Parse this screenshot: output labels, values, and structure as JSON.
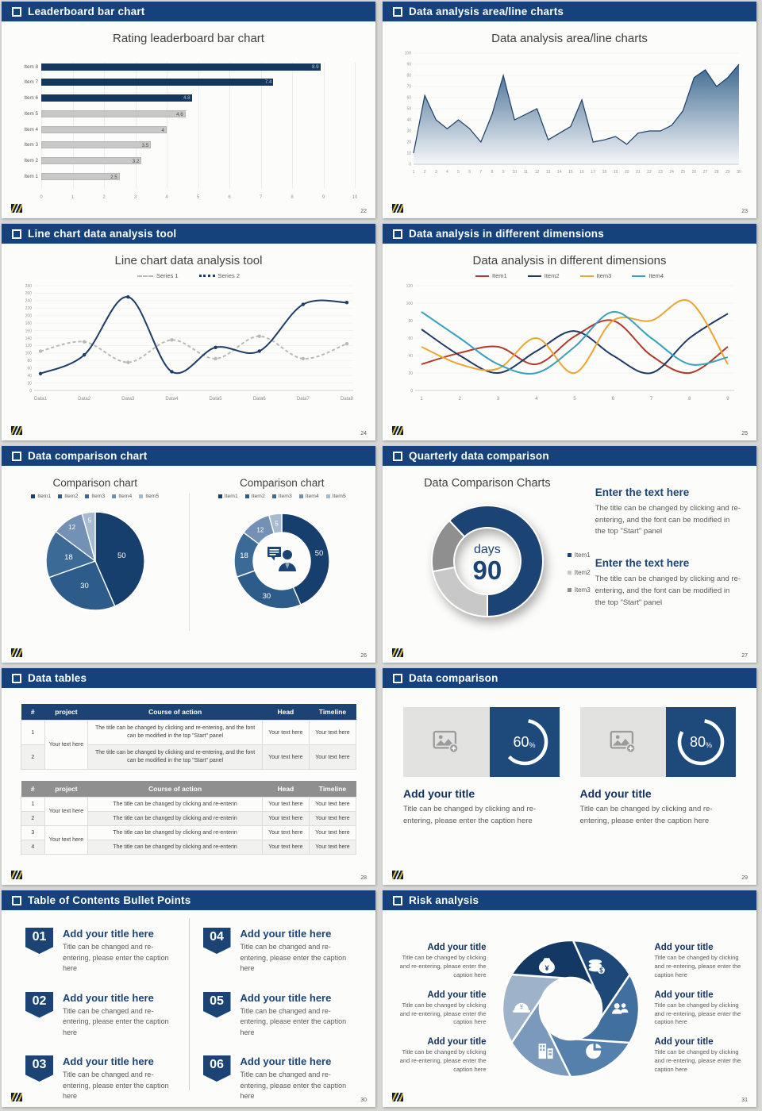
{
  "ui": {
    "page_bg": "#d7d7d3",
    "slide_bg": "#fcfcfa",
    "header_bg": "#15427a",
    "accent_navy": "#1b4475",
    "slides": {
      "leaderboard": {
        "header": "Leaderboard bar chart",
        "page": "22",
        "title": "Rating leaderboard bar chart"
      },
      "area": {
        "header": "Data analysis area/line charts",
        "page": "23",
        "title": "Data analysis area/line charts"
      },
      "line": {
        "header": "Line chart data analysis tool",
        "page": "24",
        "title": "Line chart data analysis tool",
        "legend": [
          "Series 1",
          "Series 2"
        ]
      },
      "dims": {
        "header": "Data analysis in different dimensions",
        "page": "25",
        "title": "Data analysis in different dimensions"
      },
      "pies": {
        "header": "Data comparison chart",
        "page": "26",
        "title_left": "Comparison chart",
        "title_right": "Comparison chart"
      },
      "quarterly": {
        "header": "Quarterly data comparison",
        "page": "27",
        "title": "Data Comparison Charts",
        "center_label": "days",
        "center_value": "90",
        "blocks": [
          {
            "heading": "Enter the text here",
            "body": "The title can be changed by clicking and re-entering, and the font can be modified in the top \"Start\" panel"
          },
          {
            "heading": "Enter the text here",
            "body": "The title can be changed by clicking and re-entering, and the font can be modified in the top \"Start\" panel"
          }
        ]
      },
      "tables": {
        "header": "Data tables",
        "page": "28",
        "columns": [
          "#",
          "project",
          "Course of action",
          "Head",
          "Timeline"
        ],
        "project": "Your text here",
        "cell": "Your text here",
        "long_action": "The title can be changed by clicking and re-entering, and the font can be modified in the top \"Start\" panel",
        "short_action": "The title can be changed by clicking and re-enterin",
        "t1_rows": [
          "1",
          "2"
        ],
        "t2_rows": [
          "1",
          "2",
          "3",
          "4"
        ]
      },
      "compare": {
        "header": "Data comparison",
        "page": "29",
        "cards": [
          {
            "pct": "60",
            "unit": "%",
            "title": "Add your title",
            "caption": "Title can be changed by clicking and re-entering, please enter the caption here"
          },
          {
            "pct": "80",
            "unit": "%",
            "title": "Add your title",
            "caption": "Title can be changed by clicking and re-entering, please enter the caption here"
          }
        ]
      },
      "toc": {
        "header": "Table of Contents Bullet Points",
        "page": "30",
        "items": [
          {
            "num": "01",
            "title": "Add your title here",
            "caption": "Title can be changed and re-entering, please enter the caption here"
          },
          {
            "num": "02",
            "title": "Add your title here",
            "caption": "Title can be changed and re-entering, please enter the caption here"
          },
          {
            "num": "03",
            "title": "Add your title here",
            "caption": "Title can be changed and re-entering, please enter the caption here"
          },
          {
            "num": "04",
            "title": "Add your title here",
            "caption": "Title can be changed and re-entering, please enter the caption here"
          },
          {
            "num": "05",
            "title": "Add your title here",
            "caption": "Title can be changed and re-entering, please enter the caption here"
          },
          {
            "num": "06",
            "title": "Add your title here",
            "caption": "Title can be changed and re-entering, please enter the caption here"
          }
        ]
      },
      "risk": {
        "header": "Risk analysis",
        "page": "31",
        "blocks_left": [
          {
            "heading": "Add your title",
            "caption": "Title can be changed by clicking and re-entering, please enter the caption here"
          },
          {
            "heading": "Add your title",
            "caption": "Title can be changed by clicking and re-entering, please enter the caption here"
          },
          {
            "heading": "Add your title",
            "caption": "Title can be changed by clicking and re-entering, please enter the caption here"
          }
        ],
        "blocks_right": [
          {
            "heading": "Add your title",
            "caption": "Title can be changed by clicking and re-entering, please enter the caption here"
          },
          {
            "heading": "Add your title",
            "caption": "Title can be changed by clicking and re-entering, please enter the caption here"
          },
          {
            "heading": "Add your title",
            "caption": "Title can be changed by clicking and re-entering, please enter the caption here"
          }
        ],
        "icons": [
          "coins-icon",
          "people-icon",
          "pie-chart-icon",
          "building-icon",
          "helmet-icon",
          "money-bag-icon"
        ]
      }
    }
  },
  "chart_data": [
    {
      "slide": "leaderboard",
      "type": "bar",
      "orientation": "horizontal",
      "title": "Rating leaderboard bar chart",
      "categories": [
        "Item 8",
        "Item 7",
        "Item 6",
        "Item 5",
        "Item 4",
        "Item 3",
        "Item 2",
        "Item 1"
      ],
      "values": [
        8.9,
        7.4,
        4.8,
        4.6,
        4,
        3.5,
        3.2,
        2.5
      ],
      "value_labels": [
        "8.9",
        "7.4",
        "4.8",
        "4.6",
        "4",
        "3.5",
        "3.2",
        "2.5"
      ],
      "bar_colors": [
        "#14375f",
        "#14375f",
        "#14375f",
        "#c8c8c8",
        "#c8c8c8",
        "#c8c8c8",
        "#c8c8c8",
        "#c8c8c8"
      ],
      "xlim": [
        0,
        10
      ],
      "x_ticks": [
        0,
        1,
        2,
        3,
        4,
        5,
        6,
        7,
        8,
        9,
        10
      ],
      "grid": true
    },
    {
      "slide": "area",
      "type": "area",
      "title": "Data analysis area/line charts",
      "x": [
        1,
        2,
        3,
        4,
        5,
        6,
        7,
        8,
        9,
        10,
        11,
        12,
        13,
        14,
        15,
        16,
        17,
        18,
        19,
        20,
        21,
        22,
        23,
        24,
        25,
        26,
        27,
        28,
        29,
        30
      ],
      "values": [
        10,
        62,
        40,
        32,
        40,
        32,
        20,
        45,
        80,
        40,
        45,
        50,
        22,
        28,
        34,
        58,
        20,
        22,
        25,
        18,
        28,
        30,
        30,
        35,
        48,
        78,
        85,
        70,
        78,
        90
      ],
      "ylim": [
        0,
        100
      ],
      "y_ticks": [
        0,
        10,
        20,
        30,
        40,
        50,
        60,
        70,
        80,
        90,
        100
      ],
      "line_color": "#1c3f66",
      "fill_top": "#33608a",
      "fill_bottom": "#f3f6f9",
      "grid": true
    },
    {
      "slide": "line",
      "type": "line",
      "title": "Line chart data analysis tool",
      "categories": [
        "Data1",
        "Data2",
        "Data3",
        "Data4",
        "Data5",
        "Data6",
        "Data7",
        "Data8"
      ],
      "ylim": [
        0,
        280
      ],
      "y_step": 20,
      "series": [
        {
          "name": "Series 1",
          "color": "#b9b9b9",
          "dash": true,
          "values": [
            105,
            130,
            75,
            135,
            85,
            145,
            85,
            125
          ]
        },
        {
          "name": "Series 2",
          "color": "#1e3d66",
          "dash": false,
          "values": [
            45,
            95,
            250,
            50,
            115,
            105,
            230,
            235
          ]
        }
      ],
      "legend_position": "top",
      "markers": true
    },
    {
      "slide": "dims",
      "type": "line",
      "title": "Data analysis in different dimensions",
      "x": [
        1,
        2,
        3,
        4,
        5,
        6,
        7,
        8,
        9
      ],
      "ylim": [
        0,
        120
      ],
      "y_step": 20,
      "series": [
        {
          "name": "Item1",
          "color": "#b23a2c",
          "values": [
            30,
            43,
            50,
            30,
            62,
            80,
            40,
            20,
            50
          ]
        },
        {
          "name": "Item2",
          "color": "#1f3864",
          "values": [
            70,
            40,
            20,
            45,
            68,
            40,
            20,
            60,
            88
          ]
        },
        {
          "name": "Item3",
          "color": "#eda433",
          "values": [
            50,
            30,
            25,
            60,
            20,
            80,
            80,
            102,
            30
          ]
        },
        {
          "name": "Item4",
          "color": "#36a2bd",
          "values": [
            90,
            60,
            30,
            20,
            50,
            90,
            60,
            30,
            38
          ]
        }
      ],
      "legend_position": "top",
      "markers": false
    },
    {
      "slide": "pies",
      "type": "pie",
      "titles": [
        "Comparison chart",
        "Comparison chart"
      ],
      "labels": [
        "Item1",
        "Item2",
        "Item3",
        "Item4",
        "Item5"
      ],
      "values": [
        50,
        30,
        18,
        12,
        5
      ],
      "colors": [
        "#173f6d",
        "#2e5c8a",
        "#3c6a97",
        "#7391b4",
        "#a6bad0"
      ],
      "variants": [
        "pie",
        "donut"
      ]
    },
    {
      "slide": "quarterly",
      "type": "donut",
      "title": "Data Comparison Charts",
      "labels": [
        "Item1",
        "Item2",
        "Item3"
      ],
      "values": [
        62,
        22,
        16
      ],
      "colors": [
        "#1b4475",
        "#c8c8c8",
        "#8f8f8f"
      ],
      "center": {
        "label": "days",
        "value": "90"
      }
    },
    {
      "slide": "compare",
      "type": "progress-ring",
      "values": [
        60,
        80
      ],
      "unit": "%"
    }
  ]
}
